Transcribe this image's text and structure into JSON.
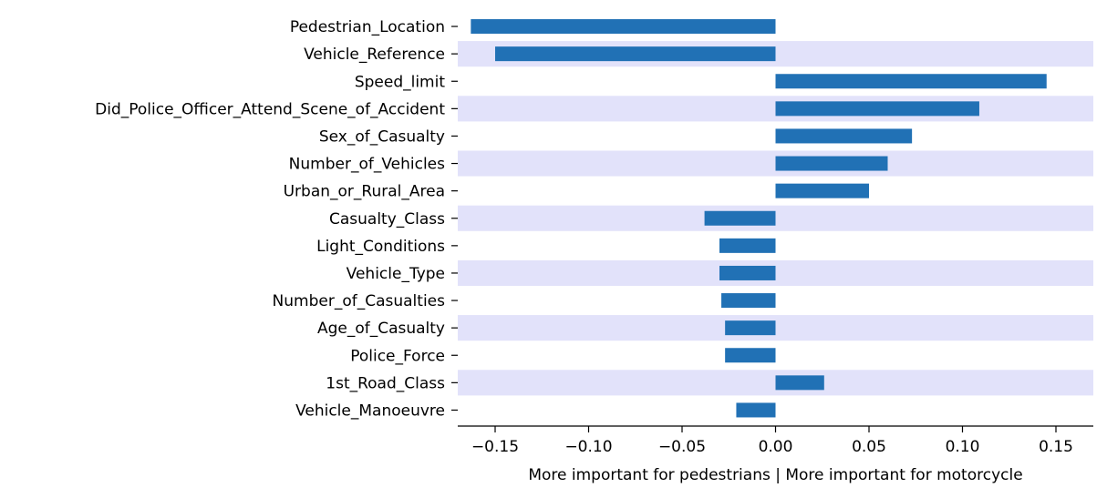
{
  "chart_data": {
    "type": "bar",
    "orientation": "horizontal",
    "categories": [
      "Pedestrian_Location",
      "Vehicle_Reference",
      "Speed_limit",
      "Did_Police_Officer_Attend_Scene_of_Accident",
      "Sex_of_Casualty",
      "Number_of_Vehicles",
      "Urban_or_Rural_Area",
      "Casualty_Class",
      "Light_Conditions",
      "Vehicle_Type",
      "Number_of_Casualties",
      "Age_of_Casualty",
      "Police_Force",
      "1st_Road_Class",
      "Vehicle_Manoeuvre"
    ],
    "values": [
      -0.163,
      -0.15,
      0.145,
      0.109,
      0.073,
      0.06,
      0.05,
      -0.038,
      -0.03,
      -0.03,
      -0.029,
      -0.027,
      -0.027,
      0.026,
      -0.021
    ],
    "xlim": [
      -0.17,
      0.17
    ],
    "xticks": [
      -0.15,
      -0.1,
      -0.05,
      0.0,
      0.05,
      0.1,
      0.15
    ],
    "xtick_labels": [
      "−0.15",
      "−0.10",
      "−0.05",
      "0.00",
      "0.05",
      "0.10",
      "0.15"
    ],
    "xlabel": "More important for pedestrians | More important for motorcycle",
    "title": "",
    "ylabel": "",
    "grid": false,
    "legend": false,
    "bar_color": "#2171b5",
    "band_color": "#e2e2fa",
    "banded_rows": true
  }
}
